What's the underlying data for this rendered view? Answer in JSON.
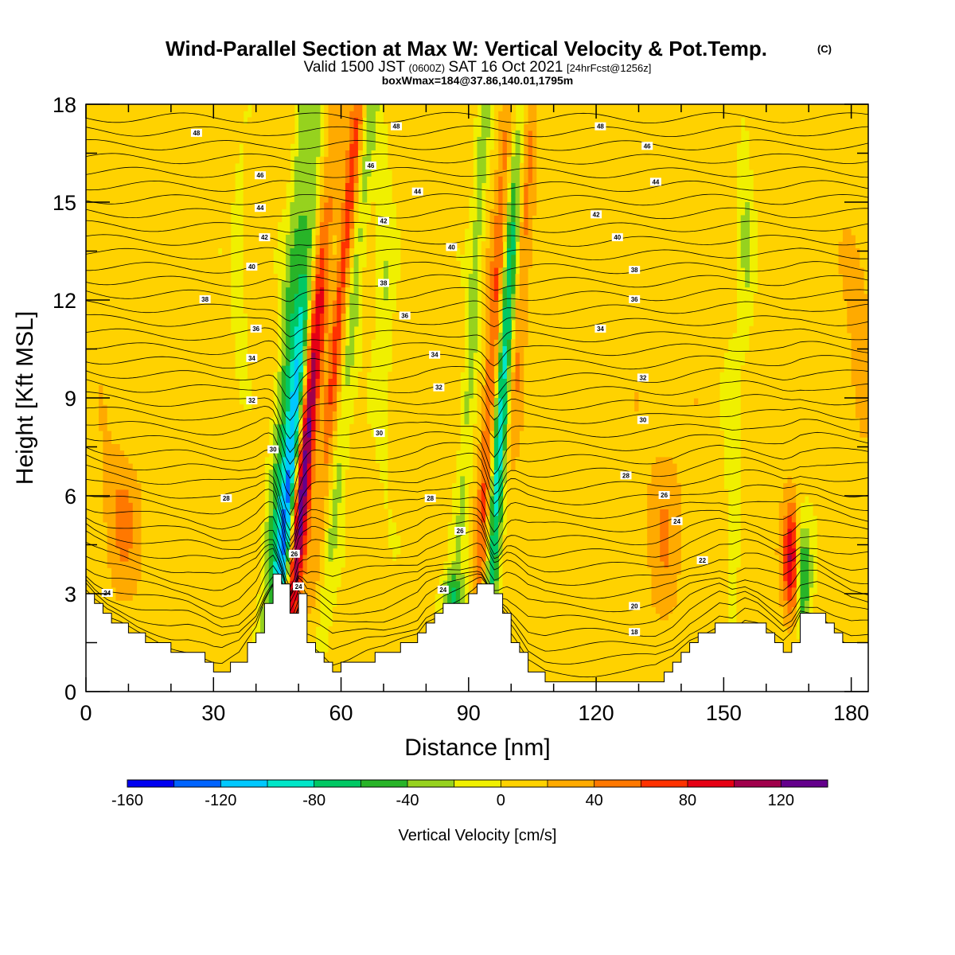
{
  "header": {
    "title": "Wind-Parallel Section at Max W: Vertical Velocity & Pot.Temp.",
    "title_mark": "(C)",
    "valid_main1": "Valid 1500 JST",
    "valid_small1": "(0600Z)",
    "valid_main2": "SAT 16 Oct 2021",
    "valid_small2": "[24hrFcst@1256z]",
    "boxline": "boxWmax=184@37.86,140.01,1795m"
  },
  "chart_data": {
    "type": "heatmap",
    "title": "Wind-Parallel Section at Max W: Vertical Velocity & Pot.Temp.",
    "xlabel": "Distance [nm]",
    "ylabel": "Height [Kft MSL]",
    "xlim": [
      0,
      184
    ],
    "ylim": [
      0,
      18
    ],
    "x_ticks": [
      0,
      30,
      60,
      90,
      120,
      150,
      180
    ],
    "y_ticks": [
      0,
      3,
      6,
      9,
      12,
      15,
      18
    ],
    "colorbar": {
      "label": "Vertical Velocity [cm/s]",
      "tick_values": [
        -160,
        -120,
        -80,
        -40,
        0,
        40,
        80,
        120
      ],
      "bins": [
        -160,
        -140,
        -120,
        -100,
        -80,
        -60,
        -40,
        -20,
        0,
        20,
        40,
        60,
        80,
        100,
        120,
        140
      ],
      "colors": [
        "#0000f0",
        "#0064ff",
        "#00c8ff",
        "#00e6c8",
        "#00c864",
        "#28b428",
        "#96d21e",
        "#f0f000",
        "#ffd200",
        "#ffaa00",
        "#ff7800",
        "#ff3200",
        "#e60014",
        "#a0004b",
        "#64008c"
      ]
    },
    "terrain_kft": [
      [
        0,
        3.0
      ],
      [
        2,
        2.6
      ],
      [
        5,
        2.2
      ],
      [
        8,
        2.0
      ],
      [
        12,
        1.7
      ],
      [
        16,
        1.5
      ],
      [
        20,
        1.3
      ],
      [
        24,
        1.2
      ],
      [
        28,
        0.9
      ],
      [
        30,
        0.7
      ],
      [
        32,
        0.6
      ],
      [
        36,
        0.9
      ],
      [
        40,
        1.8
      ],
      [
        42,
        2.8
      ],
      [
        44,
        3.5
      ],
      [
        46,
        3.2
      ],
      [
        48,
        2.4
      ],
      [
        50,
        3.0
      ],
      [
        52,
        1.6
      ],
      [
        55,
        1.2
      ],
      [
        58,
        0.7
      ],
      [
        62,
        0.8
      ],
      [
        66,
        1.0
      ],
      [
        70,
        1.1
      ],
      [
        74,
        1.4
      ],
      [
        78,
        1.7
      ],
      [
        80,
        2.2
      ],
      [
        84,
        2.6
      ],
      [
        88,
        2.8
      ],
      [
        91,
        3.1
      ],
      [
        93,
        3.4
      ],
      [
        95,
        3.3
      ],
      [
        97,
        2.8
      ],
      [
        100,
        1.6
      ],
      [
        104,
        0.6
      ],
      [
        108,
        0.3
      ],
      [
        112,
        0.3
      ],
      [
        120,
        0.3
      ],
      [
        128,
        0.3
      ],
      [
        134,
        0.4
      ],
      [
        138,
        0.8
      ],
      [
        142,
        1.5
      ],
      [
        146,
        1.9
      ],
      [
        149,
        2.2
      ],
      [
        152,
        2.0
      ],
      [
        155,
        2.3
      ],
      [
        158,
        2.1
      ],
      [
        161,
        1.7
      ],
      [
        164,
        1.3
      ],
      [
        166,
        1.6
      ],
      [
        168,
        2.3
      ],
      [
        172,
        2.3
      ],
      [
        176,
        1.8
      ],
      [
        180,
        1.4
      ],
      [
        184,
        1.3
      ]
    ],
    "theta_labels": [
      {
        "text": "48",
        "x": 26,
        "y": 17.1
      },
      {
        "text": "48",
        "x": 73,
        "y": 17.3
      },
      {
        "text": "48",
        "x": 121,
        "y": 17.3
      },
      {
        "text": "46",
        "x": 67,
        "y": 16.1
      },
      {
        "text": "46",
        "x": 41,
        "y": 15.8
      },
      {
        "text": "46",
        "x": 132,
        "y": 16.7
      },
      {
        "text": "44",
        "x": 41,
        "y": 14.8
      },
      {
        "text": "44",
        "x": 78,
        "y": 15.3
      },
      {
        "text": "44",
        "x": 134,
        "y": 15.6
      },
      {
        "text": "42",
        "x": 42,
        "y": 13.9
      },
      {
        "text": "42",
        "x": 70,
        "y": 14.4
      },
      {
        "text": "42",
        "x": 120,
        "y": 14.6
      },
      {
        "text": "40",
        "x": 39,
        "y": 13.0
      },
      {
        "text": "40",
        "x": 86,
        "y": 13.6
      },
      {
        "text": "40",
        "x": 125,
        "y": 13.9
      },
      {
        "text": "38",
        "x": 28,
        "y": 12.0
      },
      {
        "text": "38",
        "x": 70,
        "y": 12.5
      },
      {
        "text": "38",
        "x": 129,
        "y": 12.9
      },
      {
        "text": "36",
        "x": 40,
        "y": 11.1
      },
      {
        "text": "36",
        "x": 75,
        "y": 11.5
      },
      {
        "text": "36",
        "x": 129,
        "y": 12.0
      },
      {
        "text": "34",
        "x": 39,
        "y": 10.2
      },
      {
        "text": "34",
        "x": 82,
        "y": 10.3
      },
      {
        "text": "34",
        "x": 121,
        "y": 11.1
      },
      {
        "text": "32",
        "x": 39,
        "y": 8.9
      },
      {
        "text": "32",
        "x": 83,
        "y": 9.3
      },
      {
        "text": "32",
        "x": 131,
        "y": 9.6
      },
      {
        "text": "30",
        "x": 44,
        "y": 7.4
      },
      {
        "text": "30",
        "x": 69,
        "y": 7.9
      },
      {
        "text": "30",
        "x": 131,
        "y": 8.3
      },
      {
        "text": "28",
        "x": 33,
        "y": 5.9
      },
      {
        "text": "28",
        "x": 81,
        "y": 5.9
      },
      {
        "text": "28",
        "x": 127,
        "y": 6.6
      },
      {
        "text": "26",
        "x": 49,
        "y": 4.2
      },
      {
        "text": "26",
        "x": 88,
        "y": 4.9
      },
      {
        "text": "26",
        "x": 136,
        "y": 6.0
      },
      {
        "text": "24",
        "x": 5,
        "y": 3.0
      },
      {
        "text": "24",
        "x": 50,
        "y": 3.2
      },
      {
        "text": "24",
        "x": 84,
        "y": 3.1
      },
      {
        "text": "24",
        "x": 139,
        "y": 5.2
      },
      {
        "text": "22",
        "x": 145,
        "y": 4.0
      },
      {
        "text": "20",
        "x": 129,
        "y": 2.6
      },
      {
        "text": "18",
        "x": 129,
        "y": 1.8
      }
    ]
  }
}
